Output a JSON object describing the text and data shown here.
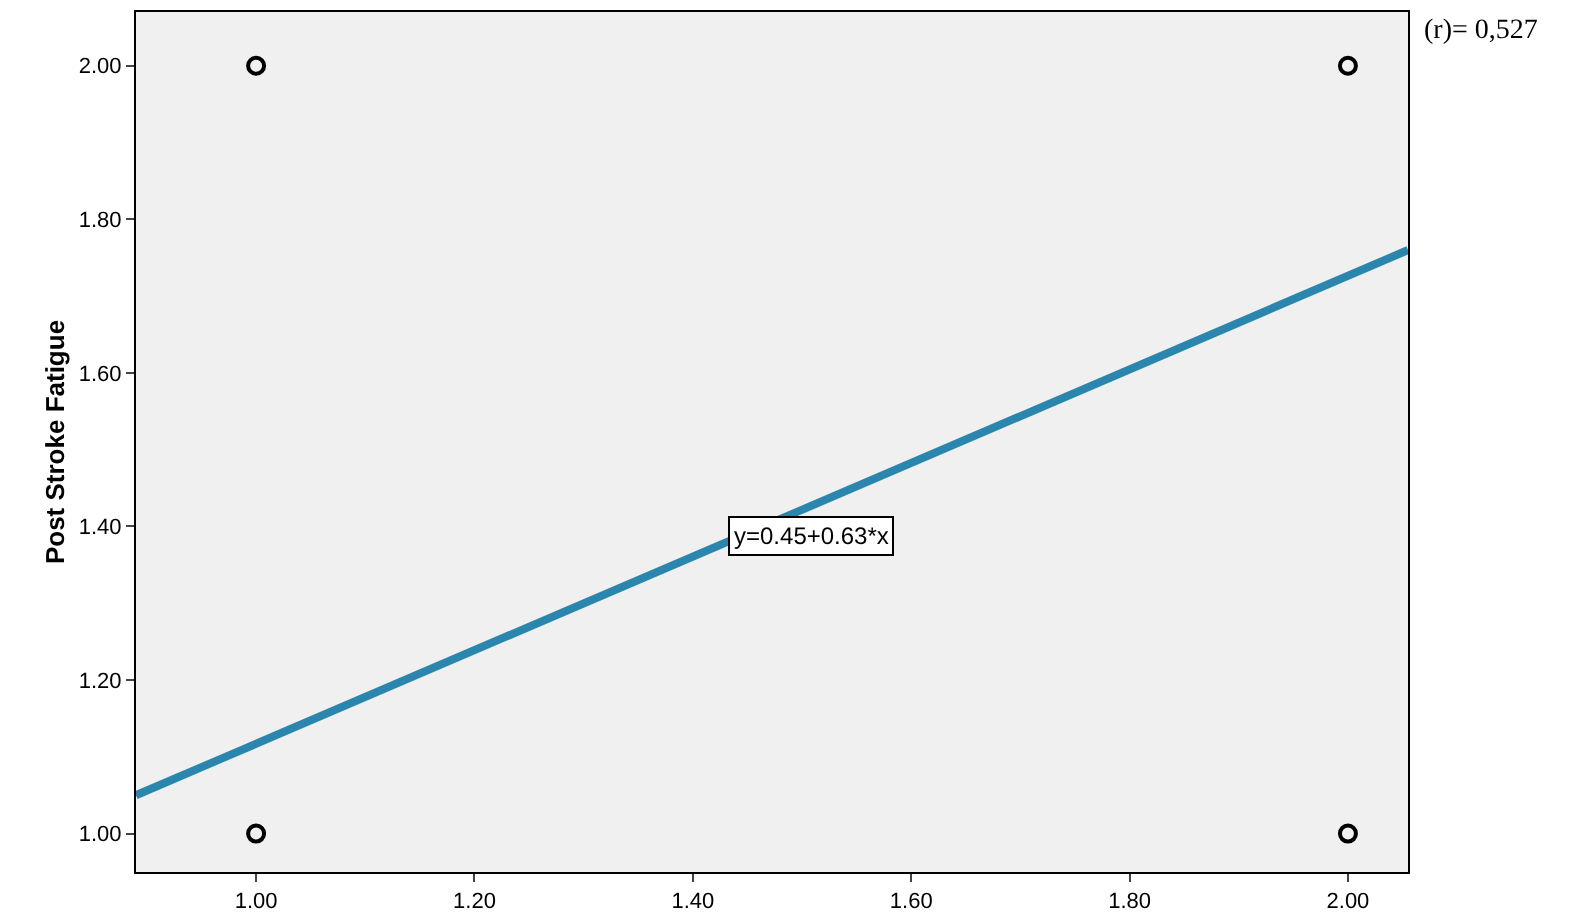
{
  "chart_data": {
    "type": "scatter",
    "ylabel": "Post Stroke Fatigue",
    "xlim": [
      0.89,
      2.055
    ],
    "ylim": [
      0.95,
      2.07
    ],
    "xticks": [
      {
        "value": 1,
        "label": "1.00"
      },
      {
        "value": 1.2,
        "label": "1.20"
      },
      {
        "value": 1.4,
        "label": "1.40"
      },
      {
        "value": 1.6,
        "label": "1.60"
      },
      {
        "value": 1.8,
        "label": "1.80"
      },
      {
        "value": 2,
        "label": "2.00"
      }
    ],
    "yticks": [
      {
        "value": 1,
        "label": "1.00"
      },
      {
        "value": 1.2,
        "label": "1.20"
      },
      {
        "value": 1.4,
        "label": "1.40"
      },
      {
        "value": 1.6,
        "label": "1.60"
      },
      {
        "value": 1.8,
        "label": "1.80"
      },
      {
        "value": 2,
        "label": "2.00"
      }
    ],
    "grid": false,
    "series": [
      {
        "color": "#000000",
        "marker": "circle",
        "x": [
          1,
          1,
          2,
          2
        ],
        "values": [
          2,
          1,
          2,
          1
        ]
      },
      {
        "type": "line",
        "color": "#2a86ad",
        "x": [
          0.89,
          2.055
        ],
        "values": [
          1.05,
          1.76
        ],
        "line_style": "solid"
      }
    ],
    "annotations": [
      "y=0.45+0.63*x",
      "(r)= 0,527"
    ]
  }
}
